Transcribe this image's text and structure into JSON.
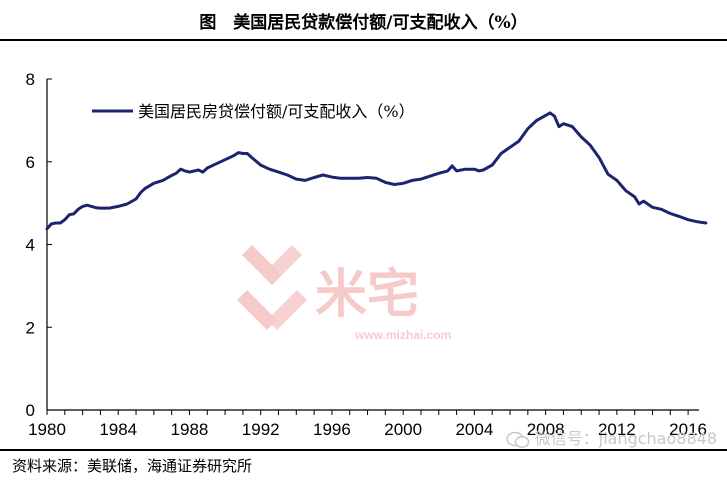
{
  "header": {
    "title": "图　美国居民贷款偿付额/可支配收入（%）"
  },
  "footer": {
    "source": "资料来源：美联储，海通证券研究所",
    "wechat": "微信号：jiangchao8848"
  },
  "watermark": {
    "brand": "米宅",
    "url": "www.mizhai.com"
  },
  "chart_data": {
    "type": "line",
    "title": "",
    "xlabel": "",
    "ylabel": "",
    "xlim": [
      1980,
      2016.5
    ],
    "ylim": [
      0,
      8
    ],
    "x_ticks": [
      "1980",
      "1984",
      "1988",
      "1992",
      "1996",
      "2000",
      "2004",
      "2008",
      "2012",
      "2016"
    ],
    "y_ticks": [
      "0",
      "2",
      "4",
      "6",
      "8"
    ],
    "legend_position": "top-left",
    "grid": false,
    "series": [
      {
        "name": "美国居民房贷偿付额/可支配收入（%）",
        "color": "#1c2470",
        "points": [
          [
            1980.0,
            4.38
          ],
          [
            1980.25,
            4.5
          ],
          [
            1980.5,
            4.52
          ],
          [
            1980.75,
            4.52
          ],
          [
            1981.0,
            4.6
          ],
          [
            1981.25,
            4.72
          ],
          [
            1981.5,
            4.74
          ],
          [
            1981.75,
            4.85
          ],
          [
            1982.0,
            4.92
          ],
          [
            1982.25,
            4.95
          ],
          [
            1982.5,
            4.92
          ],
          [
            1982.75,
            4.89
          ],
          [
            1983.0,
            4.88
          ],
          [
            1983.5,
            4.88
          ],
          [
            1984.0,
            4.92
          ],
          [
            1984.5,
            4.98
          ],
          [
            1985.0,
            5.1
          ],
          [
            1985.25,
            5.25
          ],
          [
            1985.5,
            5.35
          ],
          [
            1986.0,
            5.48
          ],
          [
            1986.5,
            5.55
          ],
          [
            1987.0,
            5.67
          ],
          [
            1987.25,
            5.72
          ],
          [
            1987.5,
            5.82
          ],
          [
            1987.75,
            5.78
          ],
          [
            1988.0,
            5.75
          ],
          [
            1988.5,
            5.8
          ],
          [
            1988.75,
            5.75
          ],
          [
            1989.0,
            5.85
          ],
          [
            1989.5,
            5.95
          ],
          [
            1990.0,
            6.05
          ],
          [
            1990.5,
            6.15
          ],
          [
            1990.75,
            6.22
          ],
          [
            1991.0,
            6.2
          ],
          [
            1991.25,
            6.2
          ],
          [
            1991.5,
            6.1
          ],
          [
            1992.0,
            5.92
          ],
          [
            1992.5,
            5.82
          ],
          [
            1993.0,
            5.75
          ],
          [
            1993.5,
            5.68
          ],
          [
            1994.0,
            5.58
          ],
          [
            1994.5,
            5.55
          ],
          [
            1995.0,
            5.62
          ],
          [
            1995.5,
            5.68
          ],
          [
            1996.0,
            5.63
          ],
          [
            1996.5,
            5.6
          ],
          [
            1997.0,
            5.6
          ],
          [
            1997.5,
            5.6
          ],
          [
            1998.0,
            5.62
          ],
          [
            1998.5,
            5.6
          ],
          [
            1999.0,
            5.5
          ],
          [
            1999.5,
            5.45
          ],
          [
            2000.0,
            5.48
          ],
          [
            2000.5,
            5.55
          ],
          [
            2001.0,
            5.58
          ],
          [
            2001.5,
            5.65
          ],
          [
            2002.0,
            5.72
          ],
          [
            2002.5,
            5.78
          ],
          [
            2002.75,
            5.9
          ],
          [
            2003.0,
            5.78
          ],
          [
            2003.5,
            5.82
          ],
          [
            2004.0,
            5.82
          ],
          [
            2004.25,
            5.78
          ],
          [
            2004.5,
            5.8
          ],
          [
            2005.0,
            5.92
          ],
          [
            2005.5,
            6.2
          ],
          [
            2006.0,
            6.35
          ],
          [
            2006.5,
            6.5
          ],
          [
            2007.0,
            6.8
          ],
          [
            2007.5,
            7.0
          ],
          [
            2008.0,
            7.12
          ],
          [
            2008.25,
            7.18
          ],
          [
            2008.5,
            7.1
          ],
          [
            2008.75,
            6.85
          ],
          [
            2009.0,
            6.92
          ],
          [
            2009.5,
            6.85
          ],
          [
            2010.0,
            6.6
          ],
          [
            2010.5,
            6.4
          ],
          [
            2011.0,
            6.1
          ],
          [
            2011.5,
            5.7
          ],
          [
            2012.0,
            5.55
          ],
          [
            2012.5,
            5.3
          ],
          [
            2013.0,
            5.15
          ],
          [
            2013.25,
            4.98
          ],
          [
            2013.5,
            5.05
          ],
          [
            2014.0,
            4.9
          ],
          [
            2014.5,
            4.85
          ],
          [
            2015.0,
            4.75
          ],
          [
            2015.5,
            4.68
          ],
          [
            2016.0,
            4.6
          ],
          [
            2016.5,
            4.55
          ],
          [
            2017.0,
            4.52
          ]
        ]
      }
    ]
  }
}
